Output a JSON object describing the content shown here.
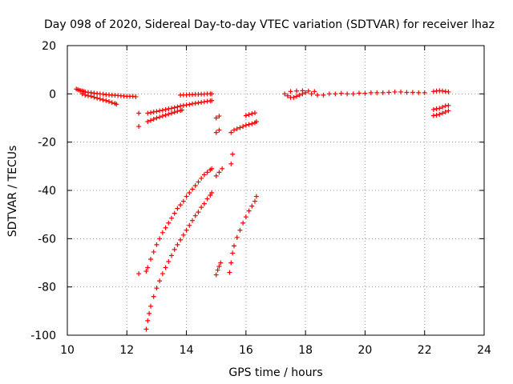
{
  "chart_data": {
    "type": "scatter",
    "title": "Day 098 of 2020, Sidereal Day-to-day VTEC variation (SDTVAR) for receiver lhaz",
    "xlabel": "GPS time / hours",
    "ylabel": "SDTVAR / TECUs",
    "xlim": [
      10,
      24
    ],
    "ylim": [
      -100,
      20
    ],
    "xticks": [
      10,
      12,
      14,
      16,
      18,
      20,
      22,
      24
    ],
    "yticks": [
      -100,
      -80,
      -60,
      -40,
      -20,
      0,
      20
    ],
    "grid": true,
    "marker": "+",
    "color": "#ff0000",
    "points": [
      [
        10.3,
        2.0
      ],
      [
        10.35,
        1.8
      ],
      [
        10.4,
        1.5
      ],
      [
        10.45,
        1.3
      ],
      [
        10.5,
        1.2
      ],
      [
        10.55,
        1.0
      ],
      [
        10.6,
        0.8
      ],
      [
        10.7,
        0.6
      ],
      [
        10.8,
        0.5
      ],
      [
        10.9,
        0.3
      ],
      [
        11.0,
        0.1
      ],
      [
        11.1,
        0.0
      ],
      [
        11.2,
        -0.1
      ],
      [
        11.3,
        -0.3
      ],
      [
        11.4,
        -0.4
      ],
      [
        11.5,
        -0.5
      ],
      [
        11.6,
        -0.6
      ],
      [
        11.7,
        -0.7
      ],
      [
        11.8,
        -0.8
      ],
      [
        11.9,
        -0.9
      ],
      [
        12.0,
        -1.0
      ],
      [
        12.1,
        -1.0
      ],
      [
        12.2,
        -1.0
      ],
      [
        12.3,
        -1.2
      ],
      [
        10.5,
        0.0
      ],
      [
        10.6,
        -0.5
      ],
      [
        10.7,
        -0.8
      ],
      [
        10.8,
        -1.0
      ],
      [
        10.9,
        -1.4
      ],
      [
        11.0,
        -1.8
      ],
      [
        11.1,
        -2.1
      ],
      [
        11.2,
        -2.5
      ],
      [
        11.3,
        -2.8
      ],
      [
        11.4,
        -3.2
      ],
      [
        11.5,
        -3.6
      ],
      [
        11.6,
        -4.0
      ],
      [
        11.65,
        -4.3
      ],
      [
        12.4,
        -8.0
      ],
      [
        12.4,
        -13.5
      ],
      [
        12.7,
        -8.0
      ],
      [
        12.8,
        -7.8
      ],
      [
        12.9,
        -7.5
      ],
      [
        13.0,
        -7.3
      ],
      [
        13.1,
        -7.0
      ],
      [
        13.2,
        -6.8
      ],
      [
        13.3,
        -6.5
      ],
      [
        13.4,
        -6.2
      ],
      [
        13.5,
        -6.0
      ],
      [
        13.6,
        -5.7
      ],
      [
        13.7,
        -5.4
      ],
      [
        13.8,
        -5.0
      ],
      [
        13.9,
        -4.8
      ],
      [
        14.0,
        -4.6
      ],
      [
        14.1,
        -4.4
      ],
      [
        14.2,
        -4.1
      ],
      [
        14.3,
        -3.9
      ],
      [
        14.4,
        -3.7
      ],
      [
        14.5,
        -3.5
      ],
      [
        14.6,
        -3.3
      ],
      [
        14.7,
        -3.1
      ],
      [
        14.8,
        -2.9
      ],
      [
        14.85,
        -2.8
      ],
      [
        12.7,
        -11.5
      ],
      [
        12.8,
        -11.0
      ],
      [
        12.9,
        -10.5
      ],
      [
        13.0,
        -10.0
      ],
      [
        13.1,
        -9.6
      ],
      [
        13.2,
        -9.2
      ],
      [
        13.3,
        -8.8
      ],
      [
        13.4,
        -8.4
      ],
      [
        13.5,
        -8.0
      ],
      [
        13.6,
        -7.6
      ],
      [
        13.7,
        -7.2
      ],
      [
        13.8,
        -6.9
      ],
      [
        13.85,
        -6.7
      ],
      [
        13.8,
        -0.5
      ],
      [
        13.9,
        -0.4
      ],
      [
        14.0,
        -0.4
      ],
      [
        14.1,
        -0.3
      ],
      [
        14.2,
        -0.3
      ],
      [
        14.3,
        -0.2
      ],
      [
        14.4,
        -0.2
      ],
      [
        14.5,
        -0.1
      ],
      [
        14.6,
        -0.1
      ],
      [
        14.7,
        0.0
      ],
      [
        14.8,
        0.0
      ],
      [
        14.85,
        0.0
      ],
      [
        15.0,
        -10.0
      ],
      [
        15.1,
        -9.2
      ],
      [
        15.0,
        -16.0
      ],
      [
        15.1,
        -15.0
      ],
      [
        15.5,
        -16.0
      ],
      [
        15.6,
        -15.0
      ],
      [
        15.7,
        -14.5
      ],
      [
        15.8,
        -14.0
      ],
      [
        15.9,
        -13.5
      ],
      [
        16.0,
        -13.0
      ],
      [
        16.1,
        -12.7
      ],
      [
        16.2,
        -12.4
      ],
      [
        16.3,
        -12.0
      ],
      [
        16.35,
        -11.5
      ],
      [
        16.0,
        -9.0
      ],
      [
        16.1,
        -8.6
      ],
      [
        16.2,
        -8.2
      ],
      [
        16.3,
        -7.9
      ],
      [
        15.5,
        -29.0
      ],
      [
        15.55,
        -25.0
      ],
      [
        12.4,
        -74.5
      ],
      [
        12.65,
        -73.5
      ],
      [
        12.7,
        -72.0
      ],
      [
        12.8,
        -68.5
      ],
      [
        12.9,
        -65.5
      ],
      [
        13.0,
        -62.5
      ],
      [
        13.1,
        -60.0
      ],
      [
        13.2,
        -57.5
      ],
      [
        13.3,
        -55.5
      ],
      [
        13.4,
        -53.5
      ],
      [
        13.5,
        -51.5
      ],
      [
        13.6,
        -49.5
      ],
      [
        13.7,
        -47.5
      ],
      [
        13.8,
        -46.0
      ],
      [
        13.9,
        -44.5
      ],
      [
        14.0,
        -42.5
      ],
      [
        14.1,
        -41.0
      ],
      [
        14.2,
        -39.5
      ],
      [
        14.3,
        -38.0
      ],
      [
        14.4,
        -36.5
      ],
      [
        14.5,
        -35.0
      ],
      [
        14.6,
        -33.5
      ],
      [
        14.7,
        -32.5
      ],
      [
        14.8,
        -31.5
      ],
      [
        14.85,
        -31.0
      ],
      [
        12.65,
        -97.5
      ],
      [
        12.7,
        -94.0
      ],
      [
        12.75,
        -91.0
      ],
      [
        12.8,
        -88.0
      ],
      [
        12.9,
        -84.0
      ],
      [
        13.0,
        -80.5
      ],
      [
        13.1,
        -77.5
      ],
      [
        13.2,
        -74.5
      ],
      [
        13.3,
        -72.0
      ],
      [
        13.4,
        -69.5
      ],
      [
        13.5,
        -67.0
      ],
      [
        13.6,
        -64.5
      ],
      [
        13.7,
        -62.5
      ],
      [
        13.8,
        -60.5
      ],
      [
        13.9,
        -58.5
      ],
      [
        14.0,
        -56.5
      ],
      [
        14.1,
        -54.5
      ],
      [
        14.2,
        -52.5
      ],
      [
        14.3,
        -50.5
      ],
      [
        14.4,
        -49.0
      ],
      [
        14.5,
        -47.0
      ],
      [
        14.6,
        -45.5
      ],
      [
        14.7,
        -43.5
      ],
      [
        14.8,
        -42.0
      ],
      [
        14.85,
        -41.0
      ],
      [
        15.0,
        -75.0
      ],
      [
        15.05,
        -73.0
      ],
      [
        15.1,
        -71.5
      ],
      [
        15.15,
        -70.0
      ],
      [
        15.0,
        -34.0
      ],
      [
        15.1,
        -32.5
      ],
      [
        15.2,
        -31.0
      ],
      [
        15.45,
        -74.0
      ],
      [
        15.5,
        -70.0
      ],
      [
        15.55,
        -66.0
      ],
      [
        15.6,
        -63.0
      ],
      [
        15.7,
        -59.5
      ],
      [
        15.8,
        -56.5
      ],
      [
        15.9,
        -53.5
      ],
      [
        16.0,
        -51.0
      ],
      [
        16.1,
        -48.5
      ],
      [
        16.2,
        -46.5
      ],
      [
        16.3,
        -44.5
      ],
      [
        16.35,
        -42.5
      ],
      [
        17.3,
        0.0
      ],
      [
        17.4,
        -0.8
      ],
      [
        17.5,
        -1.5
      ],
      [
        17.6,
        -1.5
      ],
      [
        17.7,
        -1.0
      ],
      [
        17.8,
        -0.5
      ],
      [
        17.9,
        0.0
      ],
      [
        18.0,
        0.5
      ],
      [
        18.2,
        0.0
      ],
      [
        18.4,
        -0.5
      ],
      [
        18.6,
        -0.5
      ],
      [
        18.8,
        0.0
      ],
      [
        19.0,
        0.0
      ],
      [
        19.2,
        0.2
      ],
      [
        19.4,
        0.0
      ],
      [
        19.6,
        0.0
      ],
      [
        19.8,
        0.3
      ],
      [
        20.0,
        0.2
      ],
      [
        20.2,
        0.5
      ],
      [
        20.4,
        0.5
      ],
      [
        20.6,
        0.5
      ],
      [
        20.8,
        0.6
      ],
      [
        21.0,
        0.8
      ],
      [
        21.2,
        0.8
      ],
      [
        21.4,
        0.6
      ],
      [
        21.6,
        0.6
      ],
      [
        21.8,
        0.5
      ],
      [
        22.0,
        0.5
      ],
      [
        17.5,
        1.0
      ],
      [
        17.7,
        1.2
      ],
      [
        17.9,
        1.3
      ],
      [
        18.1,
        1.2
      ],
      [
        18.3,
        1.0
      ],
      [
        22.3,
        1.0
      ],
      [
        22.4,
        1.2
      ],
      [
        22.5,
        1.3
      ],
      [
        22.6,
        1.2
      ],
      [
        22.7,
        1.0
      ],
      [
        22.8,
        0.8
      ],
      [
        22.3,
        -9.0
      ],
      [
        22.4,
        -8.8
      ],
      [
        22.5,
        -8.5
      ],
      [
        22.6,
        -8.0
      ],
      [
        22.7,
        -7.5
      ],
      [
        22.8,
        -7.0
      ],
      [
        22.3,
        -6.5
      ],
      [
        22.4,
        -6.2
      ],
      [
        22.5,
        -6.0
      ],
      [
        22.6,
        -5.5
      ],
      [
        22.7,
        -5.0
      ],
      [
        22.8,
        -4.8
      ]
    ]
  }
}
